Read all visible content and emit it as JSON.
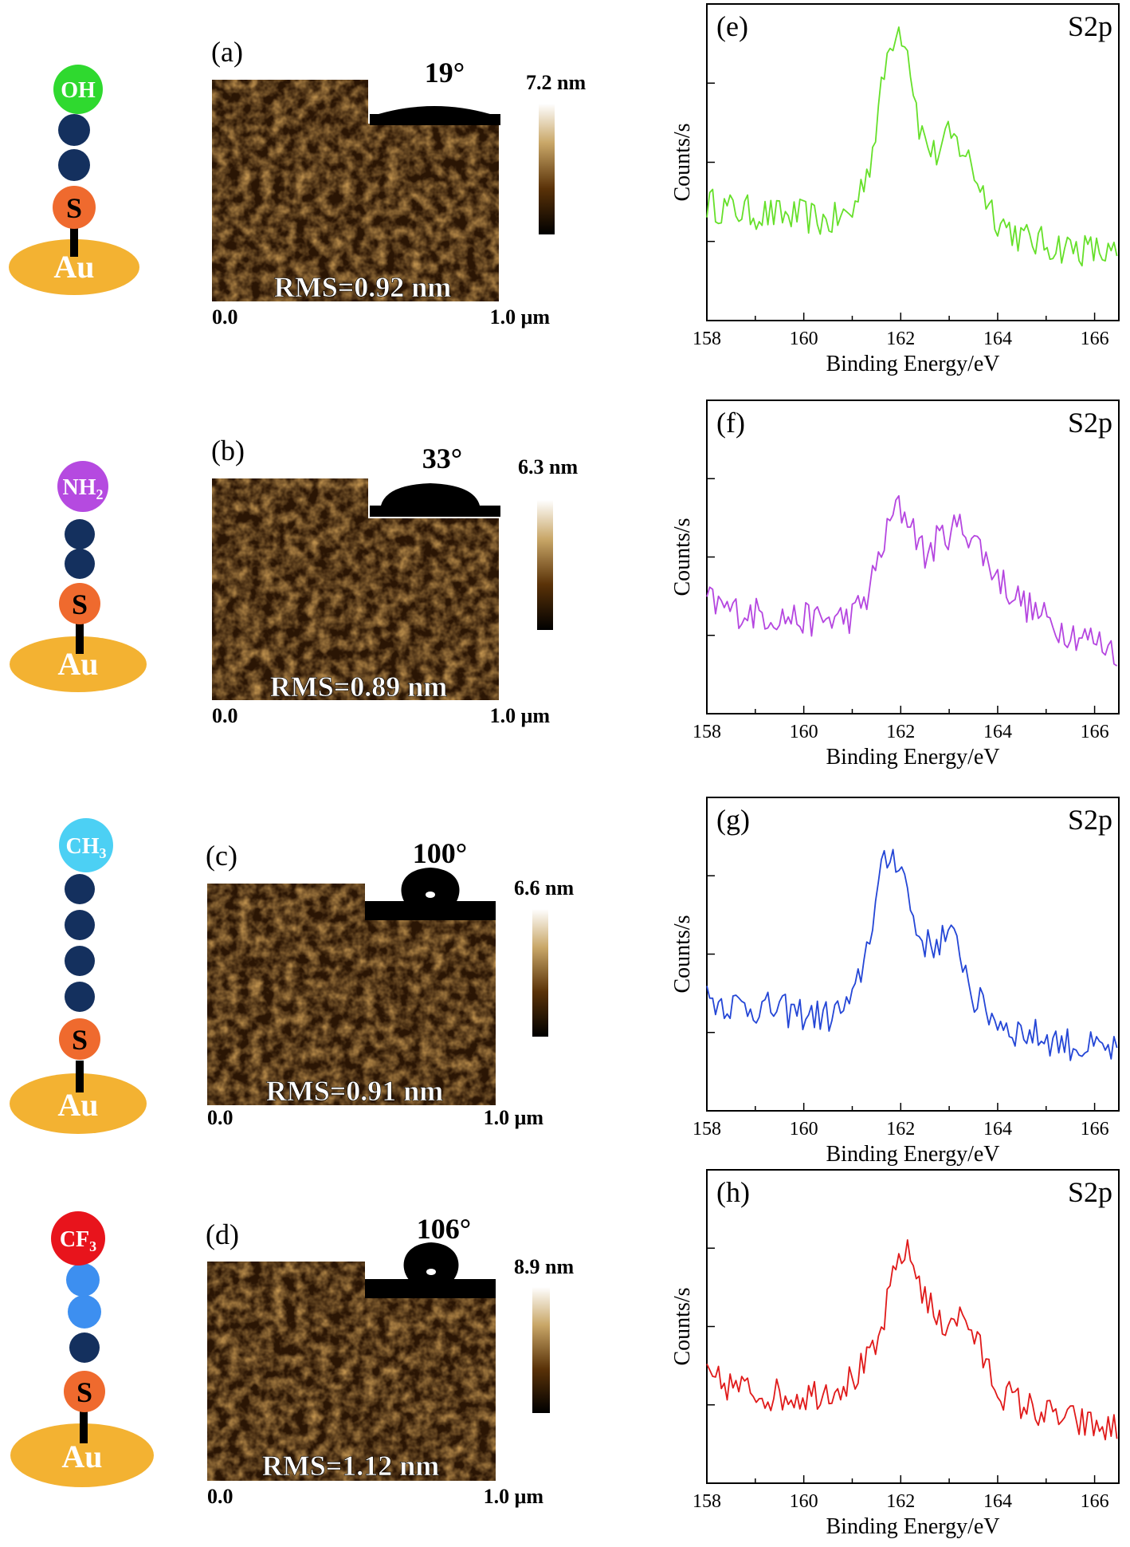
{
  "rows": [
    {
      "molecule": {
        "head": "OH",
        "head_sub": "",
        "head_color": "#2fd92f",
        "beads": [
          "#14305e",
          "#14305e"
        ],
        "anchor": "S",
        "substrate": "Au"
      },
      "afm": {
        "label": "(a)",
        "angle": "19°",
        "scale_max": "7.2 nm",
        "rms": "RMS=0.92 nm",
        "x_start": "0.0",
        "x_end": "1.0 μm",
        "drop": "flat"
      },
      "xps": {
        "label": "(e)",
        "title": "S2p",
        "color": "#66e02a"
      }
    },
    {
      "molecule": {
        "head": "NH",
        "head_sub": "2",
        "head_color": "#b54ae0",
        "beads": [
          "#14305e",
          "#14305e"
        ],
        "anchor": "S",
        "substrate": "Au"
      },
      "afm": {
        "label": "(b)",
        "angle": "33°",
        "scale_max": "6.3 nm",
        "rms": "RMS=0.89 nm",
        "x_start": "0.0",
        "x_end": "1.0 μm",
        "drop": "cap"
      },
      "xps": {
        "label": "(f)",
        "title": "S2p",
        "color": "#b546e0"
      }
    },
    {
      "molecule": {
        "head": "CH",
        "head_sub": "3",
        "head_color": "#4cd0f4",
        "beads": [
          "#14305e",
          "#14305e",
          "#14305e",
          "#14305e"
        ],
        "anchor": "S",
        "substrate": "Au"
      },
      "afm": {
        "label": "(c)",
        "angle": "100°",
        "scale_max": "6.6 nm",
        "rms": "RMS=0.91 nm",
        "x_start": "0.0",
        "x_end": "1.0 μm",
        "drop": "round"
      },
      "xps": {
        "label": "(g)",
        "title": "S2p",
        "color": "#2446d6"
      }
    },
    {
      "molecule": {
        "head": "CF",
        "head_sub": "3",
        "head_color": "#e8141c",
        "beads": [
          "#3d8ff0",
          "#3d8ff0",
          "#14305e"
        ],
        "anchor": "S",
        "substrate": "Au"
      },
      "afm": {
        "label": "(d)",
        "angle": "106°",
        "scale_max": "8.9 nm",
        "rms": "RMS=1.12 nm",
        "x_start": "0.0",
        "x_end": "1.0 μm",
        "drop": "round"
      },
      "xps": {
        "label": "(h)",
        "title": "S2p",
        "color": "#e01a1a"
      }
    }
  ],
  "chart_data": [
    {
      "type": "line",
      "label": "(e)",
      "title": "S2p",
      "xlabel": "Binding Energy/eV",
      "ylabel": "Counts/s",
      "xlim": [
        158,
        166.5
      ],
      "ylim": [
        0,
        100
      ],
      "xticks": [
        158,
        160,
        162,
        164,
        166
      ],
      "series": [
        {
          "color": "#66e02a",
          "x": [
            158,
            158.5,
            159,
            159.5,
            160,
            160.5,
            161,
            161.4,
            161.7,
            161.9,
            162.1,
            162.4,
            162.7,
            163.0,
            163.3,
            163.6,
            164,
            164.5,
            165,
            165.5,
            166,
            166.5
          ],
          "y": [
            37,
            35,
            34,
            33,
            33,
            31,
            34,
            52,
            82,
            93,
            90,
            60,
            52,
            58,
            54,
            44,
            32,
            26,
            24,
            23,
            22,
            20
          ]
        }
      ]
    },
    {
      "type": "line",
      "label": "(f)",
      "title": "S2p",
      "xlabel": "Binding Energy/eV",
      "ylabel": "Counts/s",
      "xlim": [
        158,
        166.5
      ],
      "ylim": [
        0,
        100
      ],
      "xticks": [
        158,
        160,
        162,
        164,
        166
      ],
      "series": [
        {
          "color": "#b546e0",
          "x": [
            158,
            158.5,
            159,
            159.5,
            160,
            160.5,
            161,
            161.3,
            161.6,
            161.9,
            162.2,
            162.5,
            162.8,
            163.2,
            163.5,
            163.8,
            164.2,
            164.7,
            165.2,
            165.7,
            166.2,
            166.5
          ],
          "y": [
            36,
            33,
            32,
            31,
            30,
            30,
            31,
            37,
            52,
            66,
            62,
            50,
            56,
            60,
            57,
            48,
            40,
            33,
            28,
            25,
            22,
            20
          ]
        }
      ]
    },
    {
      "type": "line",
      "label": "(g)",
      "title": "S2p",
      "xlabel": "Binding Energy/eV",
      "ylabel": "Counts/s",
      "xlim": [
        158,
        166.5
      ],
      "ylim": [
        0,
        100
      ],
      "xticks": [
        158,
        160,
        162,
        164,
        166
      ],
      "series": [
        {
          "color": "#2446d6",
          "x": [
            158,
            158.5,
            159,
            159.5,
            160,
            160.5,
            161,
            161.3,
            161.6,
            161.8,
            162.0,
            162.3,
            162.6,
            162.9,
            163.2,
            163.5,
            163.9,
            164.3,
            164.8,
            165.3,
            165.8,
            166.5
          ],
          "y": [
            36,
            34,
            33,
            32,
            31,
            30,
            34,
            52,
            76,
            82,
            80,
            58,
            52,
            56,
            53,
            36,
            30,
            26,
            24,
            22,
            20,
            19
          ]
        }
      ]
    },
    {
      "type": "line",
      "label": "(h)",
      "title": "S2p",
      "xlabel": "Binding Energy/eV",
      "ylabel": "Counts/s",
      "xlim": [
        158,
        166.5
      ],
      "ylim": [
        0,
        100
      ],
      "xticks": [
        158,
        160,
        162,
        164,
        166
      ],
      "series": [
        {
          "color": "#e01a1a",
          "x": [
            158,
            158.5,
            159,
            159.5,
            160,
            160.5,
            161,
            161.5,
            161.8,
            162.0,
            162.2,
            162.5,
            162.8,
            163.1,
            163.4,
            163.7,
            164.0,
            164.5,
            165,
            165.5,
            166,
            166.5
          ],
          "y": [
            33,
            31,
            29,
            28,
            28,
            30,
            33,
            42,
            62,
            74,
            72,
            60,
            50,
            54,
            51,
            40,
            30,
            25,
            22,
            20,
            18,
            17
          ]
        }
      ]
    }
  ]
}
